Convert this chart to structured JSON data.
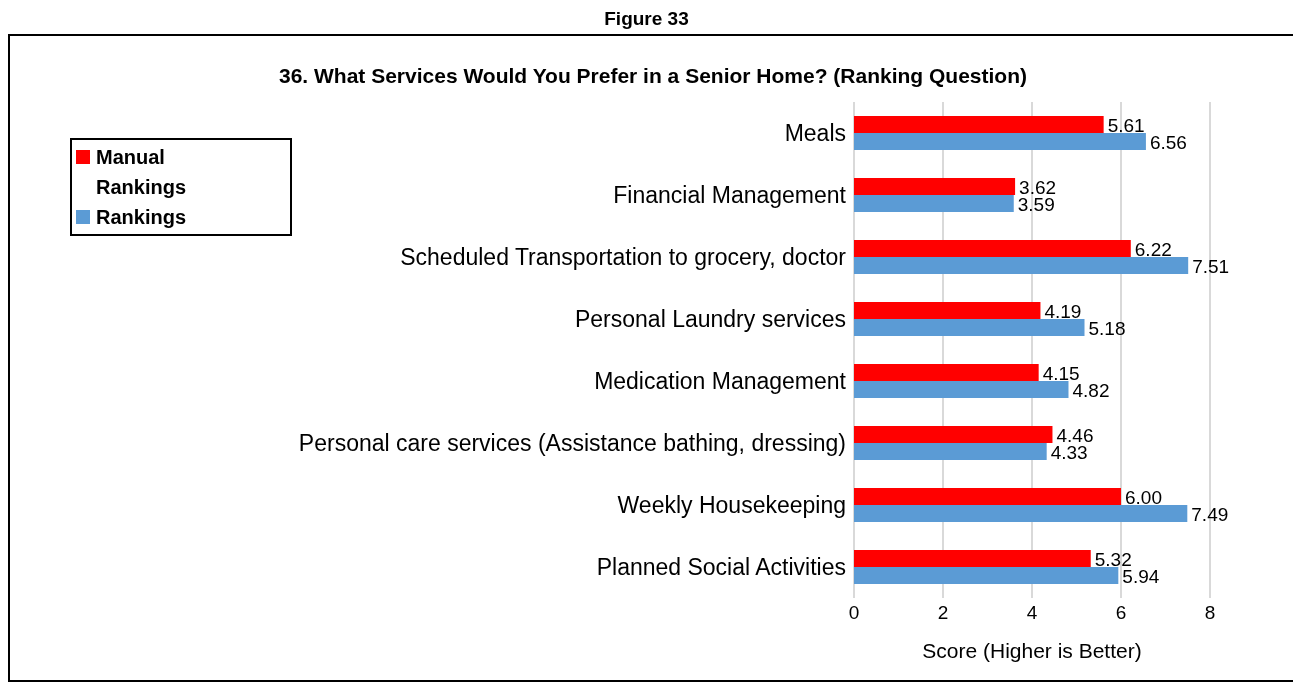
{
  "chart_data": {
    "type": "bar",
    "orientation": "horizontal",
    "title": "36. What Services Would You Prefer in a Senior Home? (Ranking Question)",
    "annotations": [
      "Figure 33"
    ],
    "xlabel": "Score (Higher is Better)",
    "categories": [
      "Meals",
      "Financial Management",
      "Scheduled Transportation to grocery, doctor",
      "Personal Laundry services",
      "Medication Management ",
      "Personal care services (Assistance bathing, dressing)",
      "Weekly Housekeeping",
      "Planned Social Activities"
    ],
    "series": [
      {
        "name": "Manual Rankings",
        "color": "#ff0000",
        "values": [
          5.61,
          3.62,
          6.22,
          4.19,
          4.15,
          4.46,
          6.0,
          5.32
        ],
        "value_labels": [
          "5.61",
          "3.62",
          "6.22",
          "4.19",
          "4.15",
          "4.46",
          "6.00",
          "5.32"
        ]
      },
      {
        "name": "Rankings",
        "color": "#5b9bd5",
        "values": [
          6.56,
          3.59,
          7.51,
          5.18,
          4.82,
          4.33,
          7.49,
          5.94
        ],
        "value_labels": [
          "6.56",
          "3.59",
          "7.51",
          "5.18",
          "4.82",
          "4.33",
          "7.49",
          "5.94"
        ]
      }
    ],
    "xlim": [
      0,
      8
    ],
    "xticks": [
      0,
      2,
      4,
      6,
      8
    ],
    "grid": "x",
    "legend": "top left"
  }
}
